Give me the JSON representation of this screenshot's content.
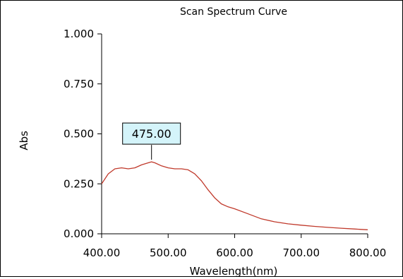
{
  "chart_data": {
    "type": "line",
    "title": "Scan Spectrum Curve",
    "xlabel": "Wavelength(nm)",
    "ylabel": "Abs",
    "xlim": [
      400,
      800
    ],
    "ylim": [
      0,
      1
    ],
    "x_ticks": [
      "400.00",
      "500.00",
      "600.00",
      "700.00",
      "800.00"
    ],
    "y_ticks": [
      "0.000",
      "0.250",
      "0.500",
      "0.750",
      "1.000"
    ],
    "grid": false,
    "peak_annotation": {
      "label": "475.00",
      "x": 475,
      "y": 0.36
    },
    "series": [
      {
        "color": "#C0392B",
        "x": [
          400,
          410,
          420,
          430,
          440,
          450,
          460,
          470,
          475,
          480,
          490,
          500,
          510,
          520,
          530,
          540,
          550,
          560,
          570,
          580,
          590,
          600,
          620,
          640,
          660,
          680,
          700,
          720,
          740,
          760,
          780,
          800
        ],
        "y": [
          0.25,
          0.3,
          0.325,
          0.33,
          0.325,
          0.33,
          0.345,
          0.355,
          0.36,
          0.355,
          0.34,
          0.33,
          0.325,
          0.325,
          0.32,
          0.3,
          0.265,
          0.22,
          0.18,
          0.15,
          0.135,
          0.125,
          0.1,
          0.075,
          0.06,
          0.05,
          0.043,
          0.037,
          0.032,
          0.028,
          0.024,
          0.02
        ]
      }
    ]
  }
}
